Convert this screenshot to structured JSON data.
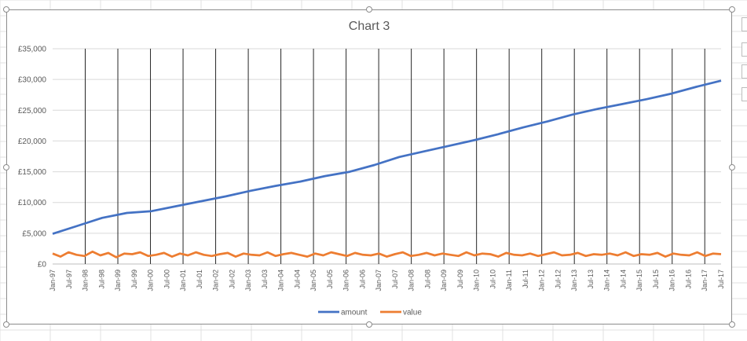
{
  "chart_data": {
    "type": "line",
    "title": "Chart 3",
    "y_ticks": [
      "£0",
      "£5,000",
      "£10,000",
      "£15,000",
      "£20,000",
      "£25,000",
      "£30,000",
      "£35,000"
    ],
    "ylim": [
      0,
      35000
    ],
    "x_tick_labels": [
      "Jan-97",
      "Jul-97",
      "Jan-98",
      "Jul-98",
      "Jan-99",
      "Jul-99",
      "Jan-00",
      "Jul-00",
      "Jan-01",
      "Jul-01",
      "Jan-02",
      "Jul-02",
      "Jan-03",
      "Jul-03",
      "Jan-04",
      "Jul-04",
      "Jan-05",
      "Jul-05",
      "Jan-06",
      "Jul-06",
      "Jan-07",
      "Jul-07",
      "Jan-08",
      "Jul-08",
      "Jan-09",
      "Jul-09",
      "Jan-10",
      "Jul-10",
      "Jan-11",
      "Jul-11",
      "Jan-12",
      "Jul-12",
      "Jan-13",
      "Jul-13",
      "Jan-14",
      "Jul-14",
      "Jan-15",
      "Jul-15",
      "Jan-16",
      "Jul-16",
      "Jan-17",
      "Jul-17"
    ],
    "horizontal_grid": true,
    "vertical_lines_at": "January of each year",
    "legend_position": "bottom",
    "series": [
      {
        "name": "amount",
        "color": "#4472c4",
        "values": [
          4900,
          6200,
          7500,
          8300,
          8600,
          9400,
          10200,
          11000,
          11900,
          12700,
          13400,
          14300,
          15000,
          16100,
          17400,
          18300,
          19200,
          20100,
          21100,
          22200,
          23200,
          24300,
          25200,
          26000,
          26800,
          27700,
          28800,
          29800
        ]
      },
      {
        "name": "value",
        "color": "#ed7d31",
        "values": [
          1700,
          1200,
          1900,
          1500,
          1300,
          2000,
          1400,
          1800,
          1100,
          1700,
          1600,
          1900,
          1300,
          1500,
          1800,
          1200,
          1700,
          1400,
          1900,
          1500,
          1300,
          1600,
          1800,
          1200,
          1700,
          1500,
          1400,
          1900,
          1300,
          1600,
          1800,
          1500,
          1200,
          1700,
          1400,
          1900,
          1600,
          1300,
          1800,
          1500,
          1400,
          1700,
          1200,
          1600,
          1900,
          1300,
          1500,
          1800,
          1400,
          1700,
          1500,
          1300,
          1900,
          1400,
          1700,
          1600,
          1200,
          1800,
          1500,
          1400,
          1700,
          1300,
          1600,
          1900,
          1400,
          1500,
          1800,
          1300,
          1600,
          1500,
          1700,
          1400,
          1900,
          1300,
          1600,
          1500,
          1800,
          1200,
          1700,
          1500,
          1400,
          1900,
          1300,
          1700,
          1600
        ]
      }
    ]
  }
}
